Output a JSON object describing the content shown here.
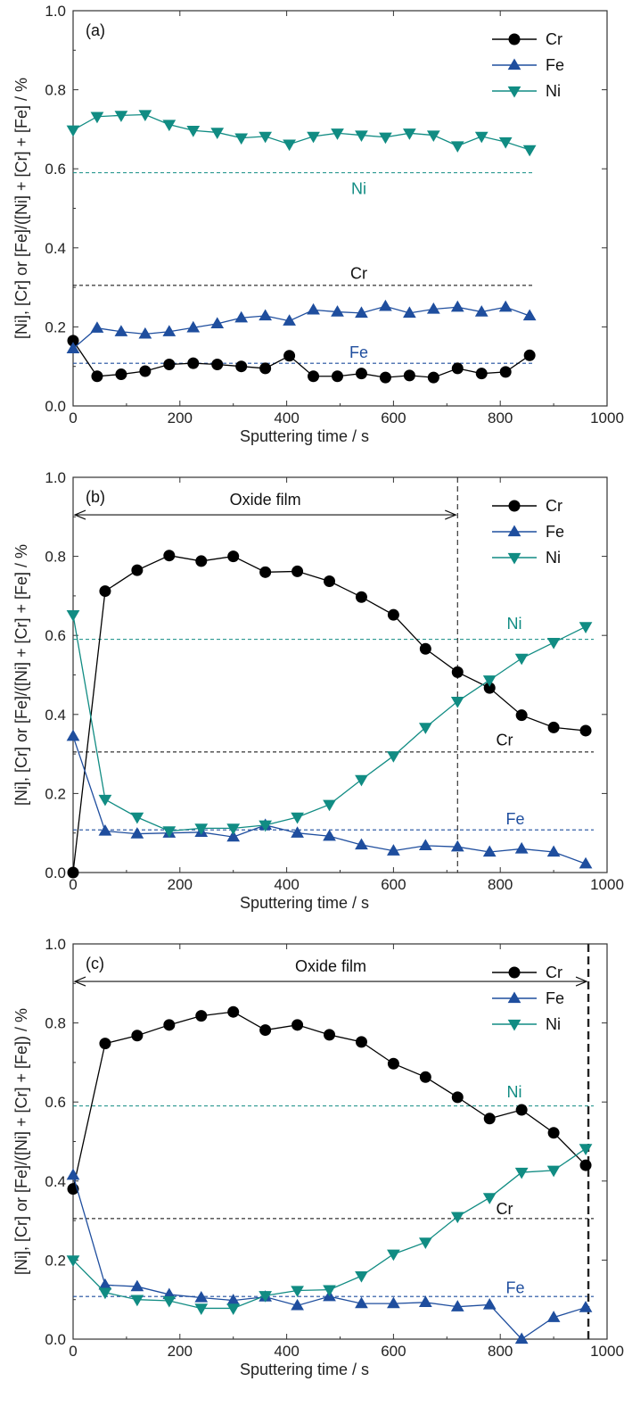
{
  "colors": {
    "Cr": "#000000",
    "Fe": "#1f4e9e",
    "Ni": "#118c83"
  },
  "chart_data": [
    {
      "type": "line",
      "panel_label": "(a)",
      "xlabel": "Sputtering time / s",
      "ylabel": "[Ni], [Cr] or [Fe]/([Ni] + [Cr] + [Fe] / %",
      "xlim": [
        0,
        1000
      ],
      "ylim": [
        0,
        1.0
      ],
      "x_ticks": [
        "0",
        "200",
        "400",
        "600",
        "800",
        "1000"
      ],
      "y_ticks": [
        "0.0",
        "0.2",
        "0.4",
        "0.6",
        "0.8",
        "1.0"
      ],
      "legend_position": "top-right",
      "series": [
        {
          "name": "Cr",
          "marker": "circle",
          "x": [
            0,
            45,
            90,
            135,
            180,
            225,
            270,
            315,
            360,
            405,
            450,
            495,
            540,
            585,
            630,
            675,
            720,
            765,
            810,
            855
          ],
          "y": [
            0.165,
            0.075,
            0.08,
            0.088,
            0.105,
            0.108,
            0.105,
            0.1,
            0.095,
            0.127,
            0.075,
            0.075,
            0.082,
            0.072,
            0.077,
            0.072,
            0.095,
            0.082,
            0.086,
            0.128
          ]
        },
        {
          "name": "Fe",
          "marker": "triangle-up",
          "x": [
            0,
            45,
            90,
            135,
            180,
            225,
            270,
            315,
            360,
            405,
            450,
            495,
            540,
            585,
            630,
            675,
            720,
            765,
            810,
            855
          ],
          "y": [
            0.145,
            0.197,
            0.188,
            0.182,
            0.188,
            0.198,
            0.208,
            0.223,
            0.228,
            0.215,
            0.243,
            0.238,
            0.235,
            0.252,
            0.235,
            0.245,
            0.25,
            0.238,
            0.25,
            0.228
          ]
        },
        {
          "name": "Ni",
          "marker": "triangle-down",
          "x": [
            0,
            45,
            90,
            135,
            180,
            225,
            270,
            315,
            360,
            405,
            450,
            495,
            540,
            585,
            630,
            675,
            720,
            765,
            810,
            855
          ],
          "y": [
            0.698,
            0.732,
            0.735,
            0.737,
            0.712,
            0.697,
            0.692,
            0.678,
            0.682,
            0.662,
            0.682,
            0.69,
            0.685,
            0.68,
            0.69,
            0.685,
            0.658,
            0.682,
            0.668,
            0.648
          ]
        }
      ],
      "reference_lines": [
        {
          "element": "Ni",
          "y": 0.59,
          "label": "Ni"
        },
        {
          "element": "Cr",
          "y": 0.305,
          "label": "Cr"
        },
        {
          "element": "Fe",
          "y": 0.108,
          "label": "Fe"
        }
      ],
      "label_positions": {
        "Ni": [
          515,
          0.55
        ],
        "Cr": [
          515,
          0.335
        ],
        "Fe": [
          515,
          0.135
        ]
      },
      "oxide_film": null
    },
    {
      "type": "line",
      "panel_label": "(b)",
      "xlabel": "Sputtering time / s",
      "ylabel": "[Ni], [Cr] or [Fe]/([Ni] + [Cr] + [Fe] / %",
      "xlim": [
        0,
        1000
      ],
      "ylim": [
        0,
        1.0
      ],
      "x_ticks": [
        "0",
        "200",
        "400",
        "600",
        "800",
        "1000"
      ],
      "y_ticks": [
        "0.0",
        "0.2",
        "0.4",
        "0.6",
        "0.8",
        "1.0"
      ],
      "legend_position": "top-right",
      "series": [
        {
          "name": "Cr",
          "marker": "circle",
          "x": [
            0,
            60,
            120,
            180,
            240,
            300,
            360,
            420,
            480,
            540,
            600,
            660,
            720,
            780,
            840,
            900,
            960
          ],
          "y": [
            0.0,
            0.712,
            0.765,
            0.802,
            0.788,
            0.8,
            0.76,
            0.762,
            0.737,
            0.697,
            0.652,
            0.566,
            0.507,
            0.467,
            0.398,
            0.367,
            0.359
          ]
        },
        {
          "name": "Fe",
          "marker": "triangle-up",
          "x": [
            0,
            60,
            120,
            180,
            240,
            300,
            360,
            420,
            480,
            540,
            600,
            660,
            720,
            780,
            840,
            900,
            960
          ],
          "y": [
            0.345,
            0.105,
            0.098,
            0.1,
            0.102,
            0.09,
            0.12,
            0.1,
            0.092,
            0.07,
            0.055,
            0.068,
            0.065,
            0.052,
            0.06,
            0.052,
            0.022
          ]
        },
        {
          "name": "Ni",
          "marker": "triangle-down",
          "x": [
            0,
            60,
            120,
            180,
            240,
            300,
            360,
            420,
            480,
            540,
            600,
            660,
            720,
            780,
            840,
            900,
            960
          ],
          "y": [
            0.652,
            0.185,
            0.14,
            0.105,
            0.112,
            0.112,
            0.12,
            0.14,
            0.172,
            0.235,
            0.295,
            0.367,
            0.433,
            0.487,
            0.542,
            0.582,
            0.622
          ]
        }
      ],
      "reference_lines": [
        {
          "element": "Ni",
          "y": 0.59,
          "label": "Ni"
        },
        {
          "element": "Cr",
          "y": 0.305,
          "label": "Cr"
        },
        {
          "element": "Fe",
          "y": 0.108,
          "label": "Fe"
        }
      ],
      "label_positions": {
        "Ni": [
          1050,
          0.63
        ],
        "Cr": [
          1050,
          0.335
        ],
        "Fe": [
          1050,
          0.135
        ]
      },
      "oxide_film": {
        "label": "Oxide film",
        "x_start": 0,
        "x_end": 720,
        "y": 0.905
      }
    },
    {
      "type": "line",
      "panel_label": "(c)",
      "xlabel": "Sputtering time / s",
      "ylabel": "[Ni], [Cr] or [Fe]/([Ni] + [Cr] + [Fe]) / %",
      "xlim": [
        0,
        1000
      ],
      "ylim": [
        0,
        1.0
      ],
      "x_ticks": [
        "0",
        "200",
        "400",
        "600",
        "800",
        "1000"
      ],
      "y_ticks": [
        "0.0",
        "0.2",
        "0.4",
        "0.6",
        "0.8",
        "1.0"
      ],
      "legend_position": "top-right",
      "series": [
        {
          "name": "Cr",
          "marker": "circle",
          "x": [
            0,
            60,
            120,
            180,
            240,
            300,
            360,
            420,
            480,
            540,
            600,
            660,
            720,
            780,
            840,
            900,
            960
          ],
          "y": [
            0.38,
            0.748,
            0.768,
            0.795,
            0.818,
            0.828,
            0.782,
            0.795,
            0.77,
            0.752,
            0.697,
            0.663,
            0.612,
            0.558,
            0.58,
            0.522,
            0.44
          ]
        },
        {
          "name": "Fe",
          "marker": "triangle-up",
          "x": [
            0,
            60,
            120,
            180,
            240,
            300,
            360,
            420,
            480,
            540,
            600,
            660,
            720,
            780,
            840,
            900,
            960
          ],
          "y": [
            0.415,
            0.137,
            0.133,
            0.113,
            0.105,
            0.098,
            0.107,
            0.085,
            0.108,
            0.09,
            0.09,
            0.093,
            0.082,
            0.087,
            0.0,
            0.055,
            0.08
          ]
        },
        {
          "name": "Ni",
          "marker": "triangle-down",
          "x": [
            0,
            60,
            120,
            180,
            240,
            300,
            360,
            420,
            480,
            540,
            600,
            660,
            720,
            780,
            840,
            900,
            960
          ],
          "y": [
            0.2,
            0.118,
            0.1,
            0.097,
            0.078,
            0.078,
            0.11,
            0.123,
            0.125,
            0.16,
            0.215,
            0.245,
            0.31,
            0.358,
            0.422,
            0.427,
            0.482
          ]
        }
      ],
      "reference_lines": [
        {
          "element": "Ni",
          "y": 0.59,
          "label": "Ni"
        },
        {
          "element": "Cr",
          "y": 0.305,
          "label": "Cr"
        },
        {
          "element": "Fe",
          "y": 0.108,
          "label": "Fe"
        }
      ],
      "label_positions": {
        "Ni": [
          1050,
          0.625
        ],
        "Cr": [
          1050,
          0.33
        ],
        "Fe": [
          1050,
          0.13
        ]
      },
      "oxide_film": {
        "label": "Oxide film",
        "x_start": 0,
        "x_end": 965,
        "y": 0.905
      }
    }
  ]
}
